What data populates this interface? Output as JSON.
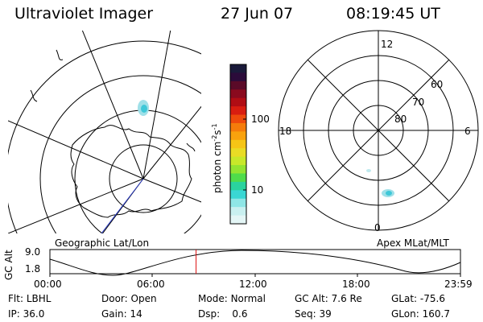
{
  "header": {
    "instrument": "Ultraviolet Imager",
    "date": "27 Jun 07",
    "time": "08:19:45 UT"
  },
  "left_map": {
    "label": "Geographic Lat/Lon"
  },
  "right_map": {
    "label": "Apex MLat/MLT",
    "mlt_labels": {
      "top": "12",
      "bottom": "0",
      "left": "18",
      "right": "6"
    },
    "lat_labels": [
      "60",
      "70",
      "80"
    ]
  },
  "colorbar": {
    "unit_label": "photon cm",
    "unit_exp1": "-2",
    "unit_mid": "s",
    "unit_exp2": "-1",
    "ticks": [
      "100",
      "10"
    ],
    "colors": [
      "#1a1a3a",
      "#2b0b3a",
      "#5a0a28",
      "#8a0a1e",
      "#b00d14",
      "#d81d10",
      "#ee4a0c",
      "#f57c0b",
      "#f9a20d",
      "#f6c516",
      "#e9dc25",
      "#c8e82a",
      "#93e431",
      "#4fdc4b",
      "#2ad39e",
      "#3ad7d4",
      "#8fe6e6",
      "#c9f0f0",
      "#e4f6f6"
    ]
  },
  "timeline": {
    "ylabel": "GC Alt",
    "ymax": "9.0",
    "ymin": "1.8",
    "ticks": [
      "00:00",
      "06:00",
      "12:00",
      "18:00",
      "23:59"
    ],
    "current_fraction": 0.356
  },
  "info": {
    "flt_label": "Flt:",
    "flt_value": "LBHL",
    "ip_label": "IP:",
    "ip_value": "36.0",
    "door_label": "Door:",
    "door_value": "Open",
    "gain_label": "Gain:",
    "gain_value": "14",
    "mode_label": "Mode:",
    "mode_value": "Normal",
    "dsp_label": "Dsp:",
    "dsp_value": "0.6",
    "gcalt_label": "GC Alt:",
    "gcalt_value": "7.6 Re",
    "seq_label": "Seq:",
    "seq_value": "39",
    "glat_label": "GLat:",
    "glat_value": "-75.6",
    "glon_label": "GLon:",
    "glon_value": "160.7"
  }
}
